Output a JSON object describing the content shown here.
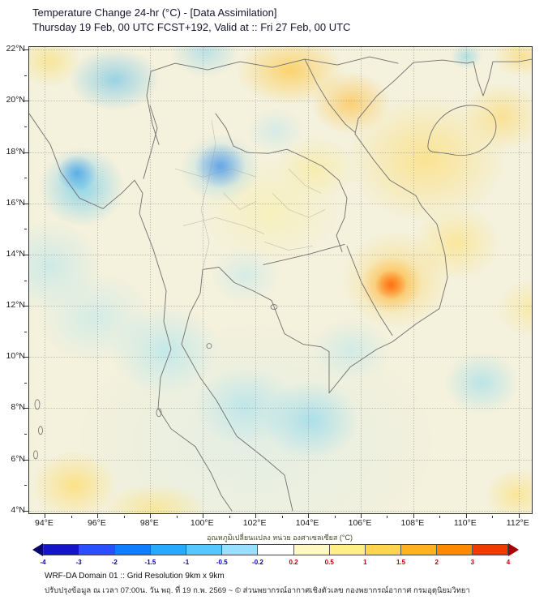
{
  "header": {
    "title": "Temperature Change 24-hr (°C) - [Data Assimilation]",
    "subtitle": "Thursday 19 Feb, 00 UTC FCST+192, Valid at :: Fri 27 Feb, 00 UTC"
  },
  "map": {
    "projection": "lat-lon",
    "lon_min": 93.4,
    "lon_max": 112.5,
    "lat_min": 3.9,
    "lat_max": 22.1,
    "lon_ticks": [
      {
        "value": 94,
        "label": "94°E"
      },
      {
        "value": 96,
        "label": "96°E"
      },
      {
        "value": 98,
        "label": "98°E"
      },
      {
        "value": 100,
        "label": "100°E"
      },
      {
        "value": 102,
        "label": "102°E"
      },
      {
        "value": 104,
        "label": "104°E"
      },
      {
        "value": 106,
        "label": "106°E"
      },
      {
        "value": 108,
        "label": "108°E"
      },
      {
        "value": 110,
        "label": "110°E"
      },
      {
        "value": 112,
        "label": "112°E"
      }
    ],
    "lat_ticks": [
      {
        "value": 22,
        "label": "22°N"
      },
      {
        "value": 20,
        "label": "20°N"
      },
      {
        "value": 18,
        "label": "18°N"
      },
      {
        "value": 16,
        "label": "16°N"
      },
      {
        "value": 14,
        "label": "14°N"
      },
      {
        "value": 12,
        "label": "12°N"
      },
      {
        "value": 10,
        "label": "10°N"
      },
      {
        "value": 8,
        "label": "8°N"
      },
      {
        "value": 6,
        "label": "6°N"
      },
      {
        "value": 4,
        "label": "4°N"
      }
    ],
    "anomaly_centers": [
      {
        "lon": 96.2,
        "lat": 17.0,
        "delta_c": -2.0,
        "note": "cooling center, western Thailand/Myanmar border"
      },
      {
        "lon": 96.5,
        "lat": 20.5,
        "delta_c": -1.0,
        "note": "cool patch, northern Myanmar"
      },
      {
        "lon": 100.6,
        "lat": 17.8,
        "delta_c": -1.5,
        "note": "cool spot, northern Thailand"
      },
      {
        "lon": 103.5,
        "lat": 21.3,
        "delta_c": 1.5,
        "note": "warm band along northern Laos/China"
      },
      {
        "lon": 106.0,
        "lat": 19.5,
        "delta_c": 1.5,
        "note": "warming, northern Vietnam"
      },
      {
        "lon": 108.5,
        "lat": 17.5,
        "delta_c": 1.5,
        "note": "broad warm area, Gulf of Tonkin/central Vietnam"
      },
      {
        "lon": 107.0,
        "lat": 13.0,
        "delta_c": 2.5,
        "note": "strongest warming, southern Vietnam/Cambodia"
      },
      {
        "lon": 103.0,
        "lat": 7.0,
        "delta_c": -1.0,
        "note": "cool area, lower Gulf of Thailand"
      },
      {
        "lon": 99.5,
        "lat": 10.5,
        "delta_c": -0.5,
        "note": "slight cooling, upper peninsula"
      },
      {
        "lon": 95.5,
        "lat": 4.8,
        "delta_c": 1.0,
        "note": "warm patch, bottom-left (north Sumatra area)"
      },
      {
        "lon": 111.5,
        "lat": 4.5,
        "delta_c": 1.0,
        "note": "warm patch, bottom-right corner"
      }
    ]
  },
  "colorbar": {
    "label": "อุณหภูมิเปลี่ยนแปลง หน่วย องศาเซลเซียส (°C)",
    "ticks": [
      -4,
      -3,
      -2,
      -1.5,
      -1,
      -0.5,
      -0.2,
      0.2,
      0.5,
      1,
      1.5,
      2,
      3,
      4
    ],
    "segment_colors": [
      "#1515c8",
      "#2a4fff",
      "#0f7dff",
      "#27a9ff",
      "#55c8ff",
      "#9adfff",
      "#ffffff",
      "#fdf8c4",
      "#ffef86",
      "#ffd44f",
      "#ffb121",
      "#ff8a00",
      "#ef3b00"
    ],
    "arrow_left_color": "#06066e",
    "arrow_right_color": "#a30000",
    "negative_tick_color": "#0000bb",
    "positive_tick_color": "#bb0000"
  },
  "footer": {
    "line1": "WRF-DA Domain 01 :: Grid Resolution 9km x 9km",
    "line2": "ปรับปรุงข้อมูล ณ เวลา 07:00น. วัน พฤ. ที่ 19 ก.พ. 2569 ~ © ส่วนพยากรณ์อากาศเชิงตัวเลข กองพยากรณ์อากาศ กรมอุตุนิยมวิทยา"
  }
}
